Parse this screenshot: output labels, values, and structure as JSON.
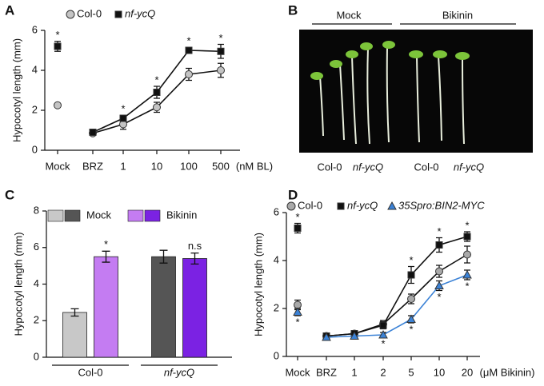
{
  "chart_data": [
    {
      "type": "line",
      "panel": "A",
      "ylabel": "Hypocotyl length (mm)",
      "xlabel": "(nM BL)",
      "categories": [
        "Mock",
        "BRZ",
        "1",
        "10",
        "100",
        "500"
      ],
      "line_starts_at": "BRZ",
      "ylim": [
        0,
        6
      ],
      "yticks": [
        0,
        2,
        4,
        6
      ],
      "series": [
        {
          "name": "Col-0",
          "color": "#c4c4c4",
          "marker": "circle",
          "italic": false,
          "values": [
            2.25,
            0.85,
            1.3,
            2.15,
            3.8,
            4.0
          ],
          "errors": [
            0.1,
            0.05,
            0.25,
            0.25,
            0.3,
            0.35
          ]
        },
        {
          "name": "nf-ycQ",
          "color": "#111111",
          "marker": "square",
          "italic": true,
          "values": [
            5.2,
            0.9,
            1.6,
            2.9,
            5.0,
            4.95
          ],
          "errors": [
            0.25,
            0.08,
            0.15,
            0.3,
            0.15,
            0.35
          ],
          "significance": [
            "*",
            null,
            "*",
            "*",
            "*",
            "*"
          ],
          "significance_side": "above"
        }
      ]
    },
    {
      "type": "bar",
      "panel": "C",
      "ylabel": "Hypocotyl length (mm)",
      "categories": [
        "Col-0",
        "nf-ycQ"
      ],
      "category_italic": [
        false,
        true
      ],
      "ylim": [
        0,
        8
      ],
      "yticks": [
        0,
        2,
        4,
        6,
        8
      ],
      "series": [
        {
          "name": "Mock",
          "colors": [
            "#c8c8c8",
            "#555555"
          ],
          "values": [
            2.45,
            5.5
          ],
          "errors": [
            0.2,
            0.35
          ]
        },
        {
          "name": "Bikinin",
          "colors": [
            "#c47cf2",
            "#7b22e3"
          ],
          "values": [
            5.5,
            5.4
          ],
          "errors": [
            0.3,
            0.3
          ],
          "significance": [
            "*",
            "n.s"
          ],
          "significance_side": "above"
        }
      ]
    },
    {
      "type": "line",
      "panel": "D",
      "ylabel": "Hypocotyl length (mm)",
      "xlabel": "(μM Bikinin)",
      "categories": [
        "Mock",
        "BRZ",
        "1",
        "2",
        "5",
        "10",
        "20"
      ],
      "line_starts_at": "BRZ",
      "ylim": [
        0,
        6
      ],
      "yticks": [
        0,
        2,
        4,
        6
      ],
      "series": [
        {
          "name": "Col-0",
          "color": "#a9a9a9",
          "marker": "circle",
          "italic": false,
          "values": [
            2.15,
            0.85,
            0.95,
            1.35,
            2.4,
            3.55,
            4.25
          ],
          "errors": [
            0.2,
            0.08,
            0.1,
            0.15,
            0.2,
            0.25,
            0.35
          ]
        },
        {
          "name": "nf-ycQ",
          "color": "#111111",
          "marker": "square",
          "italic": true,
          "values": [
            5.35,
            0.85,
            0.95,
            1.3,
            3.4,
            4.65,
            5.0
          ],
          "errors": [
            0.2,
            0.08,
            0.1,
            0.15,
            0.35,
            0.3,
            0.2
          ],
          "significance": [
            "*",
            null,
            null,
            null,
            "*",
            "*",
            "*"
          ],
          "significance_side": "above"
        },
        {
          "name": "35Spro:BIN2-MYC",
          "color": "#3b82d6",
          "marker": "triangle",
          "italic": true,
          "values": [
            1.85,
            0.8,
            0.85,
            0.9,
            1.55,
            2.95,
            3.4
          ],
          "errors": [
            0.15,
            0.06,
            0.08,
            0.1,
            0.15,
            0.2,
            0.2
          ],
          "significance": [
            "*",
            null,
            null,
            "*",
            "*",
            "*",
            "*"
          ],
          "significance_side": "below"
        }
      ]
    }
  ],
  "photo": {
    "panel": "B",
    "groups": [
      "Mock",
      "Bikinin"
    ],
    "labels": [
      "Col-0",
      "nf-ycQ",
      "Col-0",
      "nf-ycQ"
    ],
    "label_italic": [
      false,
      true,
      false,
      true
    ]
  }
}
